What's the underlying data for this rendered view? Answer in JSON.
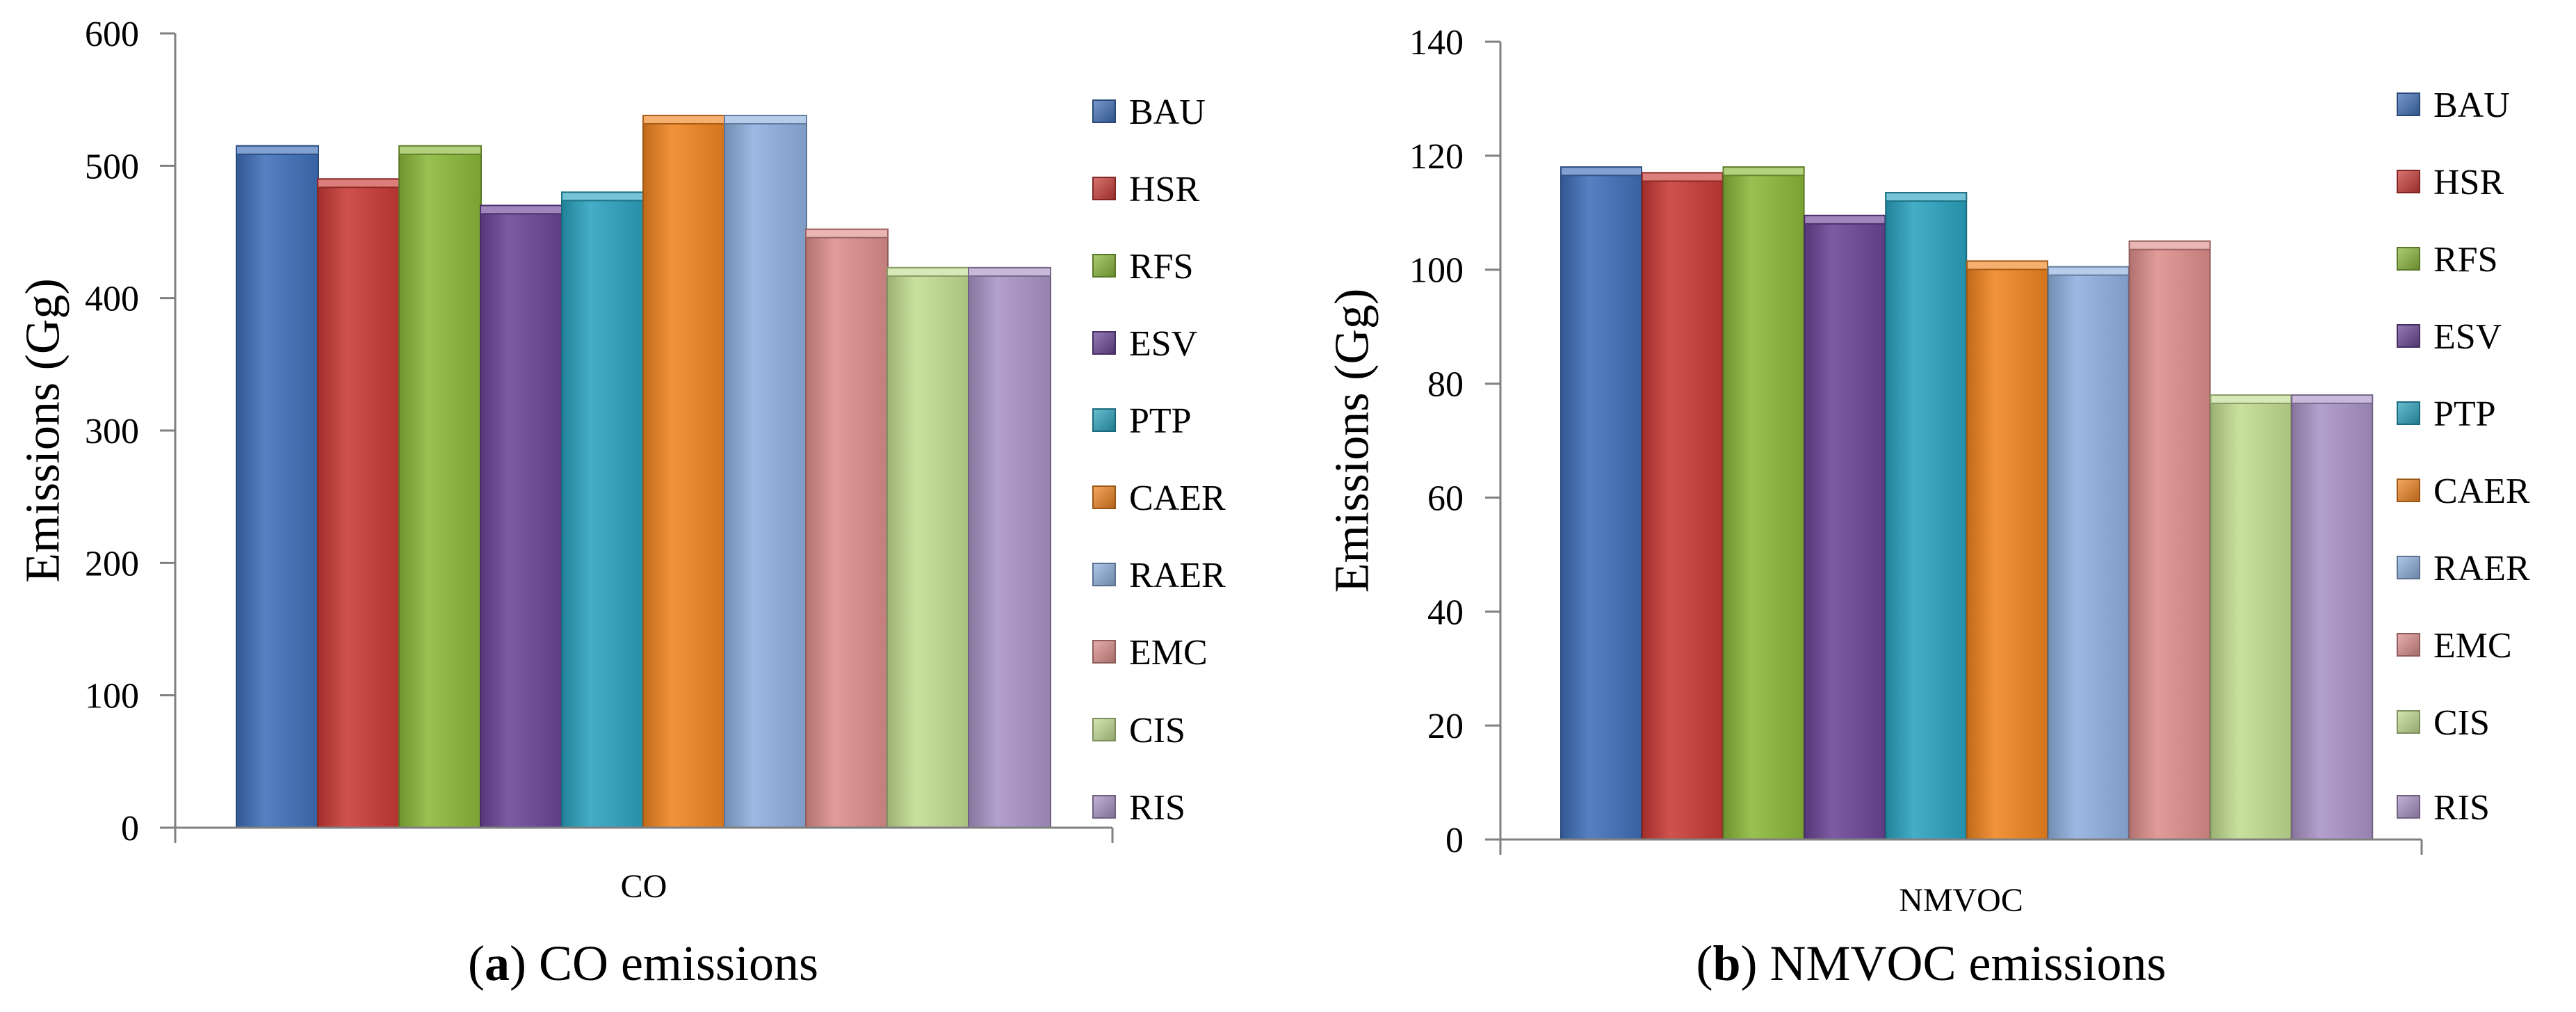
{
  "charts": [
    {
      "id": "a",
      "caption_letter": "a",
      "caption_text": "CO emissions",
      "chart_data": {
        "type": "bar",
        "categories": [
          "CO"
        ],
        "xlabel": "",
        "ylabel": "Emissions (Gg)",
        "ylim": [
          0,
          600
        ],
        "yticks": [
          0,
          100,
          200,
          300,
          400,
          500,
          600
        ],
        "legend_position": "right",
        "series": [
          {
            "name": "BAU",
            "values": [
              515
            ]
          },
          {
            "name": "HSR",
            "values": [
              490
            ]
          },
          {
            "name": "RFS",
            "values": [
              515
            ]
          },
          {
            "name": "ESV",
            "values": [
              470
            ]
          },
          {
            "name": "PTP",
            "values": [
              480
            ]
          },
          {
            "name": "CAER",
            "values": [
              538
            ]
          },
          {
            "name": "RAER",
            "values": [
              538
            ]
          },
          {
            "name": "EMC",
            "values": [
              452
            ]
          },
          {
            "name": "CIS",
            "values": [
              423
            ]
          },
          {
            "name": "RIS",
            "values": [
              423
            ]
          }
        ]
      }
    },
    {
      "id": "b",
      "caption_letter": "b",
      "caption_text": "NMVOC emissions",
      "chart_data": {
        "type": "bar",
        "categories": [
          "NMVOC"
        ],
        "xlabel": "",
        "ylabel": "Emissions (Gg)",
        "ylim": [
          0,
          140
        ],
        "yticks": [
          0,
          20,
          40,
          60,
          80,
          100,
          120,
          140
        ],
        "legend_position": "right",
        "series": [
          {
            "name": "BAU",
            "values": [
              118
            ]
          },
          {
            "name": "HSR",
            "values": [
              117
            ]
          },
          {
            "name": "RFS",
            "values": [
              118
            ]
          },
          {
            "name": "ESV",
            "values": [
              109.5
            ]
          },
          {
            "name": "PTP",
            "values": [
              113.5
            ]
          },
          {
            "name": "CAER",
            "values": [
              101.5
            ]
          },
          {
            "name": "RAER",
            "values": [
              100.5
            ]
          },
          {
            "name": "EMC",
            "values": [
              105
            ]
          },
          {
            "name": "CIS",
            "values": [
              78
            ]
          },
          {
            "name": "RIS",
            "values": [
              78
            ]
          }
        ]
      }
    }
  ],
  "series_colors": [
    "#3f6fb8",
    "#c93a36",
    "#8bb83a",
    "#6b4597",
    "#2aa3bf",
    "#f08420",
    "#8eb0df",
    "#dd8e8c",
    "#c2dd91",
    "#aa93c6"
  ],
  "axis_color": "#808080"
}
